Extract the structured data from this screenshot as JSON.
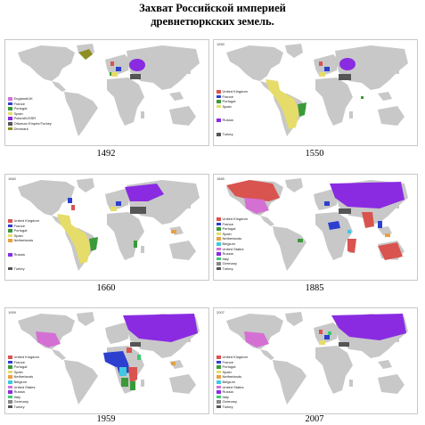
{
  "title_line1": "Захват Российской империей",
  "title_line2": "древнетюркских земель.",
  "colors": {
    "land": "#c8c8c8",
    "water": "#ffffff",
    "red": "#d9534f",
    "blue": "#2d3fcf",
    "green": "#3a9a3a",
    "yellow": "#e6dc6a",
    "purple": "#8a2be2",
    "darkgray": "#555555",
    "olive": "#8e8e22",
    "pink": "#d470d4",
    "orange": "#e8a040",
    "cyan": "#40c8e0",
    "pink2": "#e060b0"
  },
  "panels": [
    {
      "year": "1492",
      "tag": "",
      "legend": [
        "England/UK",
        "France",
        "Portugal",
        "Spain",
        "Poland/USSR",
        "Ottoman Empire/Turkey",
        "Denmark"
      ]
    },
    {
      "year": "1550",
      "tag": "1550",
      "legend": [
        "United Kingdom",
        "France",
        "Portugal",
        "Spain",
        "",
        "Russia",
        "",
        "Turkey"
      ]
    },
    {
      "year": "1660",
      "tag": "1660",
      "legend": [
        "United Kingdom",
        "France",
        "Portugal",
        "Spain",
        "Netherlands",
        "",
        "Russia",
        "",
        "Turkey"
      ]
    },
    {
      "year": "1885",
      "tag": "1885",
      "legend": [
        "United Kingdom",
        "France",
        "Portugal",
        "Spain",
        "Netherlands",
        "Belgium",
        "United States",
        "Russia",
        "Italy",
        "Germany",
        "",
        "Turkey"
      ]
    },
    {
      "year": "1959",
      "tag": "1959",
      "legend": [
        "United Kingdom",
        "France",
        "Portugal",
        "Spain",
        "Netherlands",
        "Belgium",
        "United States",
        "Russia",
        "Italy",
        "Germany",
        "Turkey"
      ]
    },
    {
      "year": "2007",
      "tag": "2007",
      "legend": [
        "United Kingdom",
        "France",
        "Portugal",
        "Spain",
        "Netherlands",
        "Belgium",
        "United States",
        "Russia",
        "Italy",
        "Germany",
        "Turkey"
      ]
    }
  ]
}
